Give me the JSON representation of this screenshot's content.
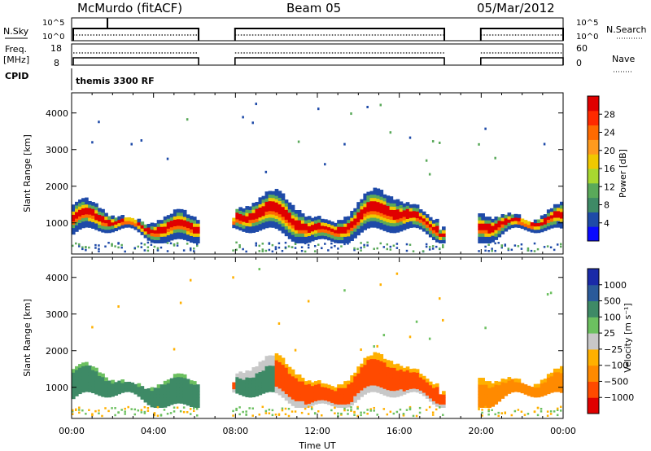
{
  "header": {
    "station": "McMurdo (fitACF)",
    "beam": "Beam 05",
    "date": "05/Mar/2012"
  },
  "strips": {
    "nsky_label": "N.Sky",
    "nsky_ticks": [
      "10^5",
      "10^0"
    ],
    "nsearch_label": "N.Search",
    "nsearch_ticks": [
      "10^5",
      "10^0"
    ],
    "freq_label_line1": "Freq.",
    "freq_label_line2": "[MHz]",
    "freq_ticks": [
      "18",
      "8"
    ],
    "nave_label": "Nave",
    "nave_ticks": [
      "60",
      "0"
    ],
    "cpid_label": "CPID",
    "cpid_value": "themis 3300 RF"
  },
  "chart_data": [
    {
      "type": "heatmap",
      "name": "power-panel",
      "ylabel": "Slant Range [km]",
      "xlabel": "",
      "xlim_hours": [
        0,
        24
      ],
      "ylim": [
        150,
        4550
      ],
      "yticks": [
        1000,
        2000,
        3000,
        4000
      ],
      "colorbar_label": "Power [dB]",
      "colorbar_ticks": [
        "28",
        "24",
        "20",
        "16",
        "12",
        "8",
        "4"
      ],
      "colorbar_colors": [
        "#e00000",
        "#ff2a00",
        "#ff6a00",
        "#ff9a1e",
        "#f0c800",
        "#a8d830",
        "#5aa95a",
        "#3e8a66",
        "#1e4aa8",
        "#0a0aff"
      ],
      "data_gaps_hours": [
        [
          6.2,
          7.9
        ],
        [
          18.2,
          19.9
        ]
      ],
      "echo_band_km": [
        600,
        1600
      ]
    },
    {
      "type": "heatmap",
      "name": "velocity-panel",
      "ylabel": "Slant Range [km]",
      "xlabel": "Time UT",
      "xlim_hours": [
        0,
        24
      ],
      "ylim": [
        150,
        4550
      ],
      "yticks": [
        1000,
        2000,
        3000,
        4000
      ],
      "xticks": [
        "00:00",
        "04:00",
        "08:00",
        "12:00",
        "16:00",
        "20:00",
        "00:00"
      ],
      "colorbar_label": "Velocity [m s⁻¹]",
      "colorbar_ticks": [
        "1000",
        "500",
        "100",
        "25",
        "−25",
        "−100",
        "−500",
        "−1000"
      ],
      "colorbar_colors": [
        "#1a2aa8",
        "#2a5a9a",
        "#3e8a66",
        "#6cc060",
        "#c8c8c8",
        "#ffb000",
        "#ff8a00",
        "#ff4a00",
        "#e00000"
      ],
      "data_gaps_hours": [
        [
          6.2,
          7.9
        ],
        [
          18.2,
          19.9
        ]
      ]
    }
  ]
}
